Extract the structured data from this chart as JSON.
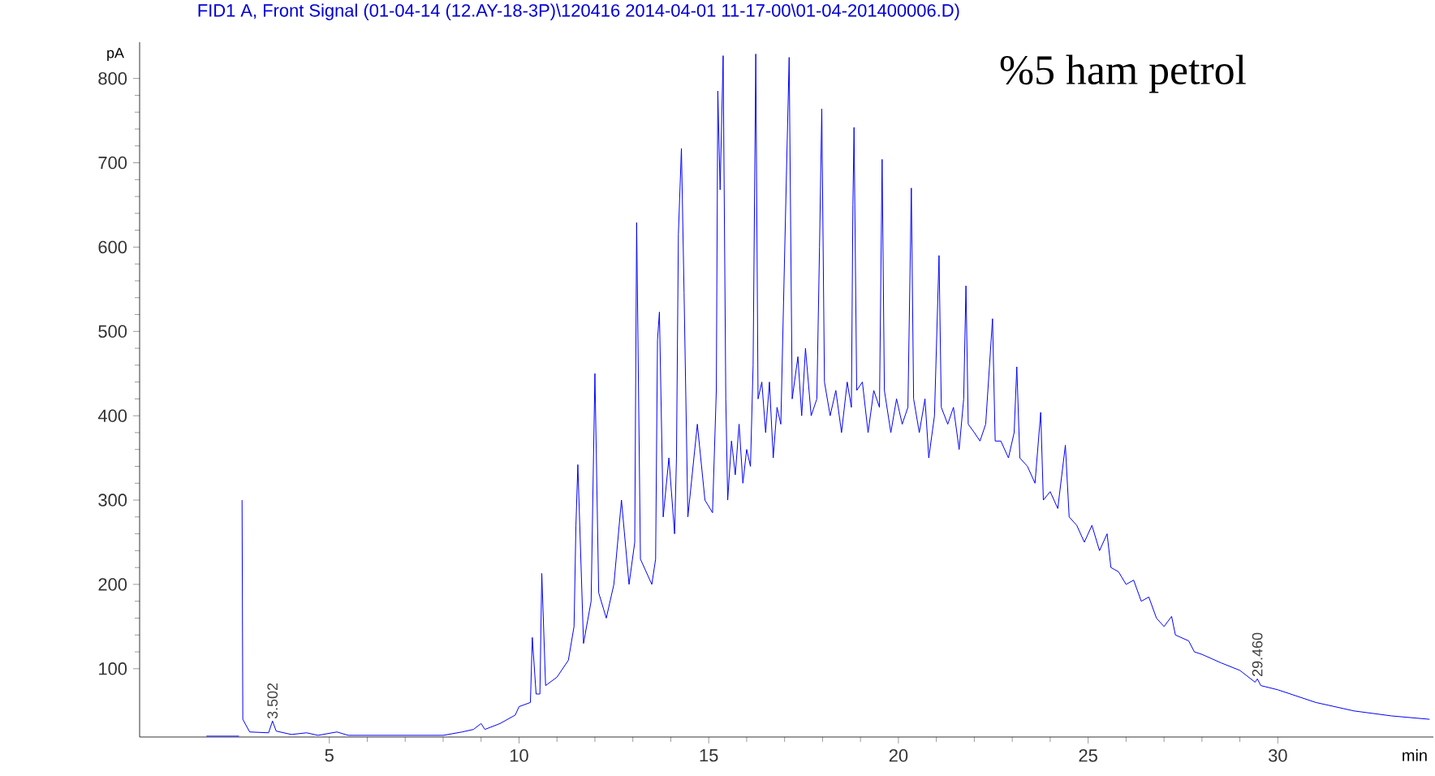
{
  "chart_data": {
    "type": "line",
    "title": "FID1 A, Front Signal (01-04-14 (12.AY-18-3P)\\120416 2014-04-01 11-17-00\\01-04-201400006.D)",
    "xlabel": "min",
    "ylabel": "pA",
    "xlim": [
      0,
      34.1
    ],
    "ylim": [
      19,
      843
    ],
    "xticks": [
      5,
      10,
      15,
      20,
      25,
      30
    ],
    "yticks": [
      100,
      200,
      300,
      400,
      500,
      600,
      700,
      800
    ],
    "annotations": [
      {
        "text": "3.502",
        "x": 3.502,
        "y": 38
      },
      {
        "text": "29.460",
        "x": 29.46,
        "y": 88
      },
      "%5 ham petrol"
    ],
    "series": [
      {
        "color": "#0000ff",
        "x": [
          1.65,
          1.71,
          1.76,
          2.62,
          2.66,
          2.7,
          2.72,
          2.9,
          3.4,
          3.502,
          3.6,
          4.0,
          4.4,
          4.7,
          5.2,
          5.5,
          7.0,
          8.0,
          8.5,
          8.8,
          9.0,
          9.1,
          9.5,
          9.9,
          10.0,
          10.3,
          10.35,
          10.45,
          10.55,
          10.6,
          10.7,
          11.0,
          11.3,
          11.45,
          11.5,
          11.55,
          11.7,
          11.9,
          12.0,
          12.1,
          12.3,
          12.5,
          12.6,
          12.7,
          12.9,
          13.05,
          13.1,
          13.2,
          13.5,
          13.6,
          13.65,
          13.7,
          13.8,
          13.95,
          14.1,
          14.15,
          14.2,
          14.28,
          14.35,
          14.45,
          14.7,
          14.9,
          15.1,
          15.2,
          15.24,
          15.3,
          15.38,
          15.45,
          15.5,
          15.6,
          15.7,
          15.8,
          15.9,
          16.0,
          16.1,
          16.17,
          16.24,
          16.3,
          16.4,
          16.5,
          16.6,
          16.7,
          16.8,
          16.9,
          17.05,
          17.12,
          17.2,
          17.35,
          17.45,
          17.55,
          17.7,
          17.85,
          17.92,
          17.98,
          18.05,
          18.2,
          18.35,
          18.5,
          18.65,
          18.76,
          18.8,
          18.83,
          18.9,
          19.05,
          19.2,
          19.35,
          19.5,
          19.57,
          19.63,
          19.8,
          19.95,
          20.1,
          20.25,
          20.34,
          20.4,
          20.55,
          20.7,
          20.8,
          20.95,
          21.07,
          21.13,
          21.3,
          21.45,
          21.6,
          21.72,
          21.78,
          21.84,
          22.0,
          22.15,
          22.3,
          22.48,
          22.55,
          22.7,
          22.9,
          23.05,
          23.12,
          23.2,
          23.4,
          23.6,
          23.75,
          23.82,
          24.0,
          24.2,
          24.4,
          24.5,
          24.7,
          24.9,
          25.1,
          25.3,
          25.5,
          25.6,
          25.8,
          26.0,
          26.2,
          26.4,
          26.6,
          26.8,
          27.0,
          27.2,
          27.3,
          27.65,
          27.8,
          28.0,
          28.5,
          29.0,
          29.4,
          29.46,
          29.55,
          30.0,
          31.0,
          32.0,
          33.0,
          34.0
        ],
        "values": [
          20,
          null,
          20,
          20,
          null,
          300,
          40,
          25,
          24,
          38,
          26,
          22,
          24,
          21,
          25,
          21,
          21,
          21,
          25,
          28,
          35,
          28,
          35,
          45,
          55,
          60,
          137,
          70,
          70,
          213,
          80,
          90,
          110,
          150,
          270,
          342,
          130,
          180,
          450,
          190,
          160,
          200,
          250,
          300,
          200,
          250,
          629,
          230,
          200,
          230,
          490,
          523,
          280,
          350,
          260,
          350,
          615,
          717,
          546,
          280,
          390,
          300,
          285,
          430,
          785,
          668,
          827,
          420,
          300,
          370,
          330,
          390,
          320,
          360,
          340,
          460,
          829,
          420,
          440,
          380,
          440,
          350,
          410,
          390,
          690,
          825,
          420,
          470,
          400,
          480,
          400,
          420,
          600,
          764,
          440,
          400,
          430,
          380,
          440,
          410,
          650,
          742,
          430,
          440,
          380,
          430,
          410,
          704,
          430,
          380,
          420,
          390,
          410,
          670,
          420,
          380,
          420,
          350,
          400,
          590,
          410,
          390,
          410,
          360,
          420,
          554,
          390,
          380,
          370,
          390,
          515,
          370,
          370,
          350,
          380,
          458,
          350,
          340,
          320,
          404,
          300,
          310,
          290,
          365,
          280,
          270,
          250,
          270,
          240,
          260,
          220,
          215,
          200,
          205,
          180,
          185,
          160,
          150,
          162,
          140,
          133,
          120,
          117,
          107,
          98,
          84,
          88,
          80,
          75,
          60,
          50,
          44,
          40
        ]
      }
    ]
  }
}
